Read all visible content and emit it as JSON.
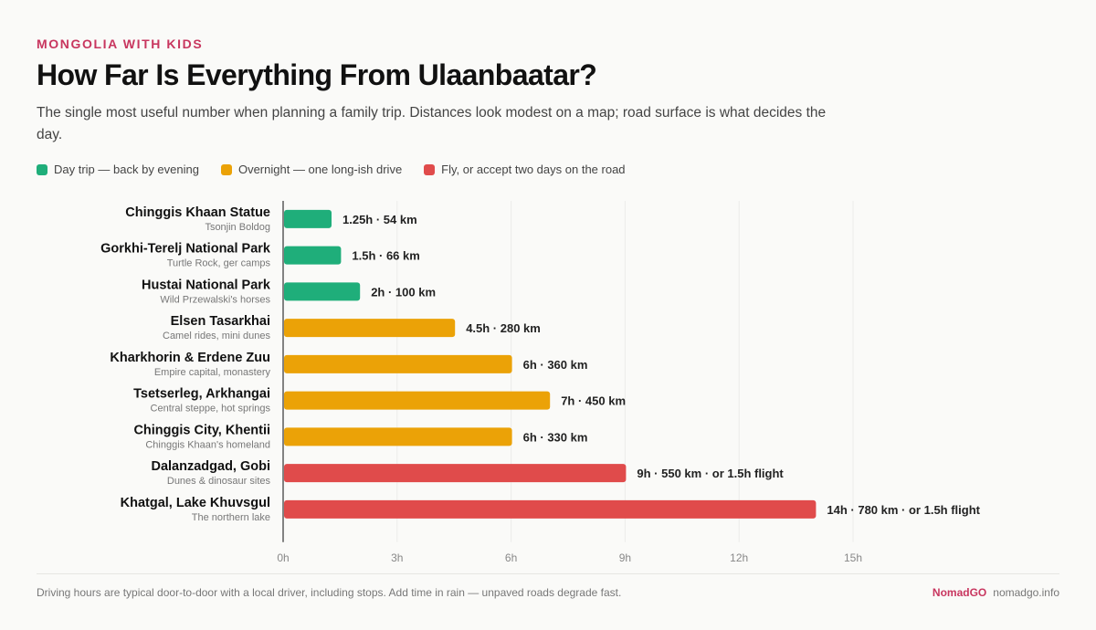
{
  "header": {
    "eyebrow": "MONGOLIA WITH KIDS",
    "title": "How Far Is Everything From Ulaanbaatar?",
    "subtitle": "The single most useful number when planning a family trip. Distances look modest on a map; road surface is what decides the day."
  },
  "legend": [
    {
      "label": "Day trip — back by evening",
      "color": "#1fae7a"
    },
    {
      "label": "Overnight — one long-ish drive",
      "color": "#eba207"
    },
    {
      "label": "Fly, or accept two days on the road",
      "color": "#e04b4b"
    }
  ],
  "chart_data": {
    "type": "bar",
    "orientation": "horizontal",
    "xlim": [
      0,
      15
    ],
    "xticks": [
      "0h",
      "3h",
      "6h",
      "9h",
      "12h",
      "15h"
    ],
    "xtick_values": [
      0,
      3,
      6,
      9,
      12,
      15
    ],
    "grid": true,
    "legend_position": "top-left",
    "categories": [
      {
        "name": "Chinggis Khaan Statue",
        "sub": "Tsonjin Boldog",
        "hours": 1.25,
        "label": "1.25h · 54 km",
        "group": 0
      },
      {
        "name": "Gorkhi-Terelj National Park",
        "sub": "Turtle Rock, ger camps",
        "hours": 1.5,
        "label": "1.5h · 66 km",
        "group": 0
      },
      {
        "name": "Hustai National Park",
        "sub": "Wild Przewalski's horses",
        "hours": 2,
        "label": "2h · 100 km",
        "group": 0
      },
      {
        "name": "Elsen Tasarkhai",
        "sub": "Camel rides, mini dunes",
        "hours": 4.5,
        "label": "4.5h · 280 km",
        "group": 1
      },
      {
        "name": "Kharkhorin & Erdene Zuu",
        "sub": "Empire capital, monastery",
        "hours": 6,
        "label": "6h · 360 km",
        "group": 1
      },
      {
        "name": "Tsetserleg, Arkhangai",
        "sub": "Central steppe, hot springs",
        "hours": 7,
        "label": "7h · 450 km",
        "group": 1
      },
      {
        "name": "Chinggis City, Khentii",
        "sub": "Chinggis Khaan's homeland",
        "hours": 6,
        "label": "6h · 330 km",
        "group": 1
      },
      {
        "name": "Dalanzadgad, Gobi",
        "sub": "Dunes & dinosaur sites",
        "hours": 9,
        "label": "9h · 550 km · or 1.5h flight",
        "group": 2
      },
      {
        "name": "Khatgal, Lake Khuvsgul",
        "sub": "The northern lake",
        "hours": 14,
        "label": "14h · 780 km · or 1.5h flight",
        "group": 2
      }
    ]
  },
  "footer": {
    "note": "Driving hours are typical door-to-door with a local driver, including stops. Add time in rain — unpaved roads degrade fast.",
    "brand": "NomadGO",
    "site": "nomadgo.info"
  }
}
